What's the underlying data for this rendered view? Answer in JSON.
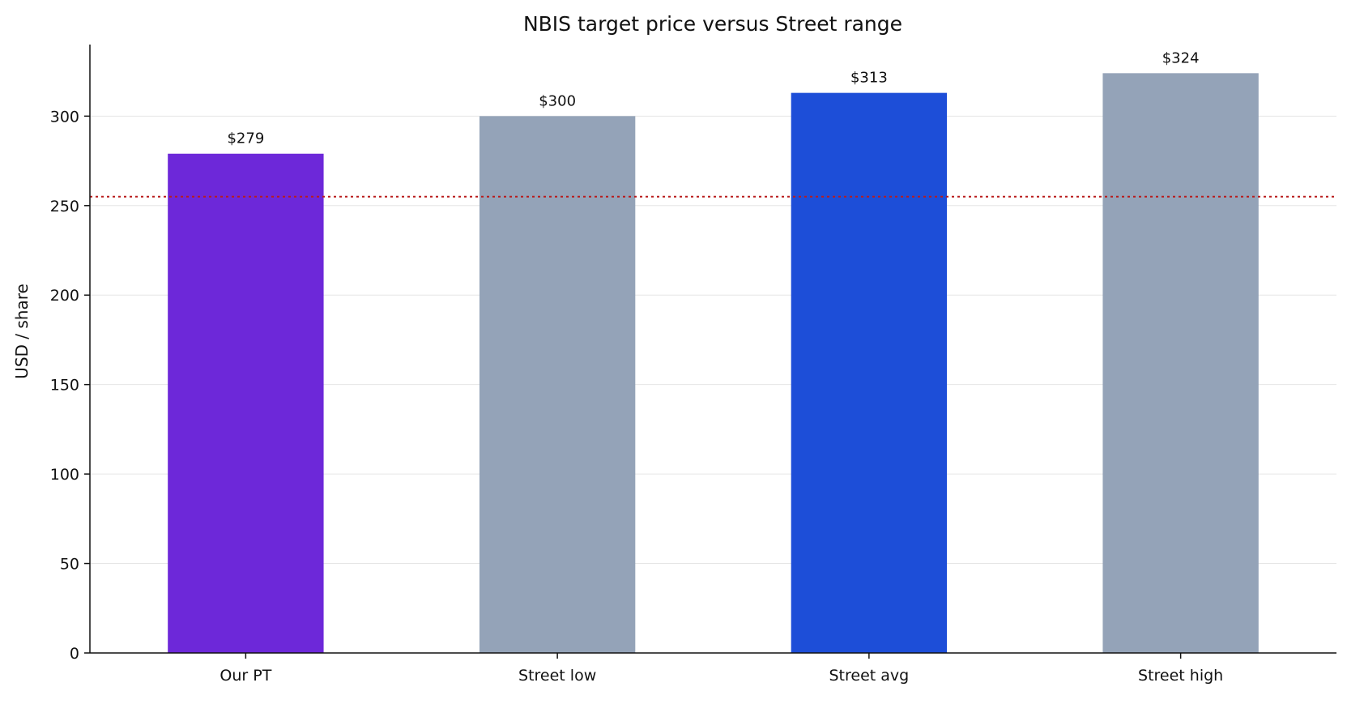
{
  "chart_data": {
    "type": "bar",
    "title": "NBIS target price versus Street range",
    "xlabel": "",
    "ylabel": "USD / share",
    "categories": [
      "Our PT",
      "Street low",
      "Street avg",
      "Street high"
    ],
    "values": [
      279,
      300,
      313,
      324
    ],
    "data_labels": [
      "$279",
      "$300",
      "$313",
      "$324"
    ],
    "bar_colors": [
      "#6d28d9",
      "#94a3b8",
      "#1d4ed8",
      "#94a3b8"
    ],
    "ylim": [
      0,
      340
    ],
    "yticks": [
      0,
      50,
      100,
      150,
      200,
      250,
      300
    ],
    "reference_line": {
      "value": 255,
      "color": "#b91c1c",
      "style": "dotted"
    },
    "grid": "horizontal",
    "legend": "none"
  }
}
